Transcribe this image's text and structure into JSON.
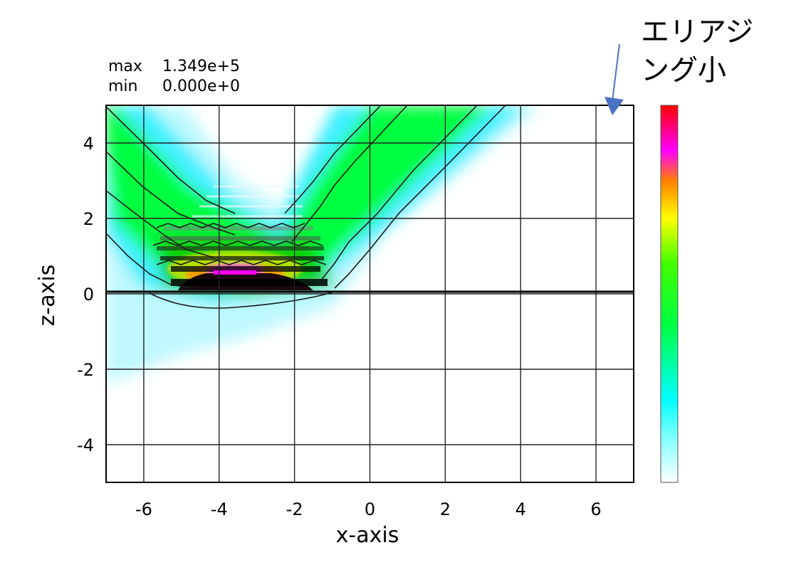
{
  "chart_data": {
    "type": "heatmap",
    "stats": [
      {
        "label": "max",
        "value": "1.349e+5"
      },
      {
        "label": "min",
        "value": "0.000e+0"
      }
    ],
    "xlabel": "x-axis",
    "ylabel": "z-axis",
    "xlim": [
      -7,
      7
    ],
    "ylim": [
      -5,
      5
    ],
    "xticks": [
      -6,
      -4,
      -2,
      0,
      2,
      4,
      6
    ],
    "yticks": [
      4,
      2,
      0,
      -2,
      -4
    ],
    "grid": true,
    "interface_line_z": 0,
    "colorbar": {
      "range": [
        0,
        134900
      ],
      "colors": [
        "#ffffff",
        "#00ffff",
        "#00ff40",
        "#ffff00",
        "#ff00ff",
        "#ff0000"
      ]
    },
    "annotation": {
      "lines": [
        "エリアジ",
        "ング小"
      ],
      "arrow_target": "top-right corner of plot"
    },
    "contour_levels": 5
  }
}
